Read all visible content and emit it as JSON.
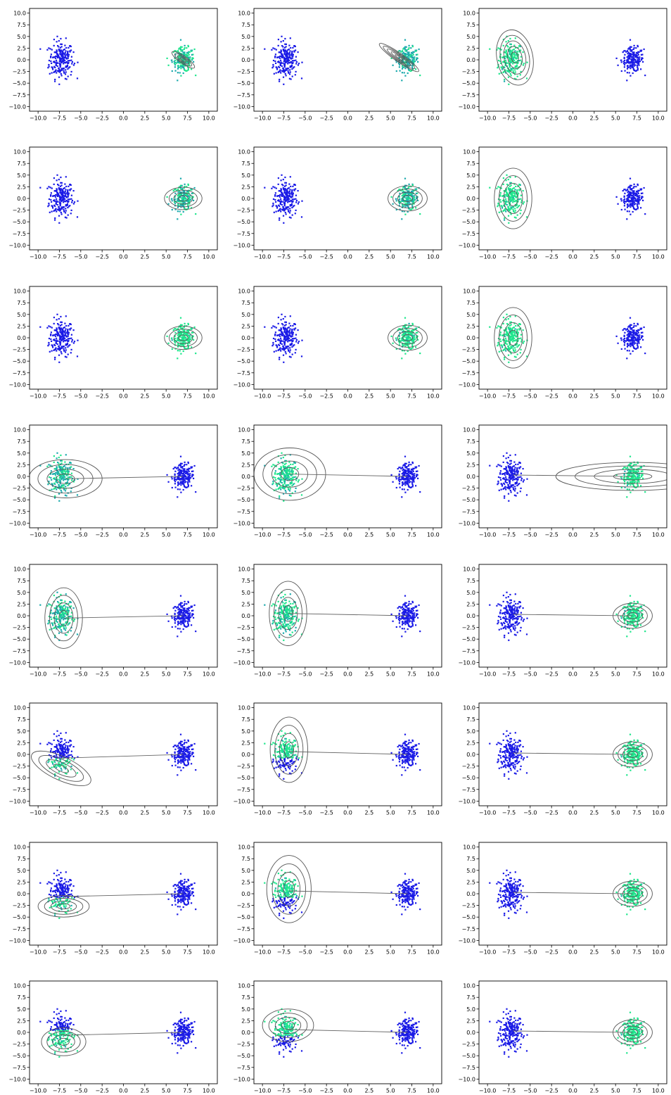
{
  "chart_data": {
    "type": "scatter",
    "layout": "8 rows x 3 columns of subplots",
    "xlim": [
      -11,
      11
    ],
    "ylim": [
      -11,
      11
    ],
    "grid": false,
    "xticks": [
      "−10.0",
      "−7.5",
      "−5.0",
      "−2.5",
      "0.0",
      "2.5",
      "5.0",
      "7.5",
      "10.0"
    ],
    "yticks": [
      "10.0",
      "7.5",
      "5.0",
      "2.5",
      "0.0",
      "−2.5",
      "−5.0",
      "−7.5",
      "−10.0"
    ],
    "xtick_values": [
      -10,
      -7.5,
      -5,
      -2.5,
      0,
      2.5,
      5,
      7.5,
      10
    ],
    "ytick_values": [
      10,
      7.5,
      5,
      2.5,
      0,
      -2.5,
      -5,
      -7.5,
      -10
    ],
    "colors": {
      "cluster_default": "#1a1ae6",
      "highlight": "#1ee68c",
      "mid": "#1a78c8",
      "contour": "#555555",
      "line": "#666666"
    },
    "clusters": [
      {
        "cx": -7.3,
        "cy": 0,
        "sx": 0.7,
        "sy": 2.0,
        "n": 230
      },
      {
        "cx": 7.0,
        "cy": 0,
        "sx": 0.65,
        "sy": 1.3,
        "n": 200
      }
    ],
    "panels": [
      {
        "highlight": "right",
        "mix": 0.6,
        "ellipse": {
          "cx": 7,
          "cy": 0,
          "rx": 1.6,
          "ry": 0.8,
          "angle": -35,
          "levels": 4
        },
        "line": false
      },
      {
        "highlight": "right",
        "mix": 0.3,
        "ellipse": {
          "cx": 6,
          "cy": 0.5,
          "rx": 2.8,
          "ry": 0.9,
          "angle": -35,
          "levels": 5
        },
        "line": false
      },
      {
        "highlight": "left",
        "mix": 0.9,
        "ellipse": {
          "cx": -6.8,
          "cy": 0.5,
          "rx": 2.1,
          "ry": 6.0,
          "angle": 12,
          "levels": 5
        },
        "line": false
      },
      {
        "highlight": "right",
        "mix": 0.5,
        "ellipse": {
          "cx": 7,
          "cy": 0,
          "rx": 2.2,
          "ry": 2.4,
          "angle": 0,
          "levels": 4
        },
        "line": false
      },
      {
        "highlight": "right",
        "mix": 0.4,
        "ellipse": {
          "cx": 7,
          "cy": 0,
          "rx": 2.3,
          "ry": 2.7,
          "angle": 0,
          "levels": 4
        },
        "line": false
      },
      {
        "highlight": "left",
        "mix": 0.9,
        "ellipse": {
          "cx": -7,
          "cy": 0,
          "rx": 2.2,
          "ry": 6.5,
          "angle": 0,
          "levels": 4
        },
        "line": false
      },
      {
        "highlight": "right",
        "mix": 0.95,
        "ellipse": {
          "cx": 7,
          "cy": 0,
          "rx": 2.2,
          "ry": 2.5,
          "angle": 0,
          "levels": 4
        },
        "line": false
      },
      {
        "highlight": "right",
        "mix": 0.85,
        "ellipse": {
          "cx": 7,
          "cy": 0,
          "rx": 2.3,
          "ry": 2.7,
          "angle": 0,
          "levels": 4
        },
        "line": false
      },
      {
        "highlight": "left",
        "mix": 0.95,
        "ellipse": {
          "cx": -7,
          "cy": 0,
          "rx": 2.2,
          "ry": 6.5,
          "angle": 0,
          "levels": 4
        },
        "line": false
      },
      {
        "highlight": "left",
        "mix": 0.4,
        "ellipse": {
          "cx": -6.8,
          "cy": -0.5,
          "rx": 4.3,
          "ry": 4.1,
          "angle": 0,
          "levels": 4
        },
        "line": true,
        "lineFrom": [
          -6.8,
          -0.5
        ],
        "lineTo": [
          7.0,
          0
        ]
      },
      {
        "highlight": "left",
        "mix": 0.7,
        "ellipse": {
          "cx": -6.8,
          "cy": 0.5,
          "rx": 4.2,
          "ry": 5.6,
          "angle": 0,
          "levels": 4
        },
        "line": true,
        "lineFrom": [
          -6.8,
          0.5
        ],
        "lineTo": [
          7.0,
          0
        ]
      },
      {
        "highlight": "right",
        "mix": 0.9,
        "ellipse": {
          "cx": 7,
          "cy": 0,
          "rx": 9.0,
          "ry": 3.0,
          "angle": 0,
          "levels": 4
        },
        "line": true,
        "lineFrom": [
          -7.0,
          0.3
        ],
        "lineTo": [
          7.0,
          0
        ]
      },
      {
        "highlight": "left",
        "mix": 0.5,
        "ellipse": {
          "cx": -7,
          "cy": -0.5,
          "rx": 2.2,
          "ry": 6.5,
          "angle": 0,
          "levels": 4
        },
        "line": true,
        "lineFrom": [
          -7.0,
          -0.5
        ],
        "lineTo": [
          7.0,
          0
        ]
      },
      {
        "highlight": "left",
        "mix": 0.7,
        "ellipse": {
          "cx": -7,
          "cy": 0.5,
          "rx": 2.2,
          "ry": 6.9,
          "angle": 0,
          "levels": 4
        },
        "line": true,
        "lineFrom": [
          -7.0,
          0.5
        ],
        "lineTo": [
          7.0,
          0
        ]
      },
      {
        "highlight": "right",
        "mix": 0.9,
        "ellipse": {
          "cx": 7,
          "cy": 0,
          "rx": 2.3,
          "ry": 2.7,
          "angle": 0,
          "levels": 4
        },
        "line": true,
        "lineFrom": [
          -7.0,
          0.3
        ],
        "lineTo": [
          7.0,
          0
        ]
      },
      {
        "highlight": "left-bottom",
        "mix": 0.8,
        "ellipse": {
          "cx": -7.3,
          "cy": -3.0,
          "rx": 3.8,
          "ry": 2.5,
          "angle": -25,
          "levels": 4
        },
        "line": true,
        "lineFrom": [
          -7.3,
          -0.8
        ],
        "lineTo": [
          7.0,
          0
        ]
      },
      {
        "highlight": "left-top",
        "mix": 0.8,
        "ellipse": {
          "cx": -6.9,
          "cy": 1.0,
          "rx": 2.2,
          "ry": 7.0,
          "angle": 0,
          "levels": 4
        },
        "line": true,
        "lineFrom": [
          -6.9,
          0.6
        ],
        "lineTo": [
          7.0,
          0
        ]
      },
      {
        "highlight": "right",
        "mix": 0.95,
        "ellipse": {
          "cx": 7,
          "cy": 0,
          "rx": 2.3,
          "ry": 2.7,
          "angle": 0,
          "levels": 4
        },
        "line": true,
        "lineFrom": [
          -7.0,
          0.3
        ],
        "lineTo": [
          7.0,
          0
        ]
      },
      {
        "highlight": "left-bottom",
        "mix": 0.8,
        "ellipse": {
          "cx": -7.0,
          "cy": -2.7,
          "rx": 3.0,
          "ry": 2.3,
          "angle": 0,
          "levels": 4
        },
        "line": true,
        "lineFrom": [
          -7.0,
          -0.6
        ],
        "lineTo": [
          7.0,
          0
        ]
      },
      {
        "highlight": "left-top",
        "mix": 0.8,
        "ellipse": {
          "cx": -6.9,
          "cy": 1.0,
          "rx": 2.6,
          "ry": 7.2,
          "angle": 0,
          "levels": 4
        },
        "line": true,
        "lineFrom": [
          -6.9,
          0.6
        ],
        "lineTo": [
          7.0,
          0
        ]
      },
      {
        "highlight": "right",
        "mix": 0.95,
        "ellipse": {
          "cx": 7,
          "cy": 0,
          "rx": 2.3,
          "ry": 2.7,
          "angle": 0,
          "levels": 4
        },
        "line": true,
        "lineFrom": [
          -7.0,
          0.3
        ],
        "lineTo": [
          7.0,
          0
        ]
      },
      {
        "highlight": "left-mid",
        "mix": 0.85,
        "ellipse": {
          "cx": -7.0,
          "cy": -2.0,
          "rx": 2.6,
          "ry": 3.0,
          "angle": 0,
          "levels": 4
        },
        "line": true,
        "lineFrom": [
          -7.0,
          -0.6
        ],
        "lineTo": [
          7.0,
          0
        ]
      },
      {
        "highlight": "left-top",
        "mix": 0.85,
        "ellipse": {
          "cx": -7.0,
          "cy": 1.5,
          "rx": 3.0,
          "ry": 3.5,
          "angle": 0,
          "levels": 4
        },
        "line": true,
        "lineFrom": [
          -7.0,
          0.6
        ],
        "lineTo": [
          7.0,
          0
        ]
      },
      {
        "highlight": "right",
        "mix": 0.95,
        "ellipse": {
          "cx": 7,
          "cy": 0,
          "rx": 2.3,
          "ry": 2.7,
          "angle": 0,
          "levels": 4
        },
        "line": true,
        "lineFrom": [
          -7.0,
          0.3
        ],
        "lineTo": [
          7.0,
          0
        ]
      }
    ]
  }
}
